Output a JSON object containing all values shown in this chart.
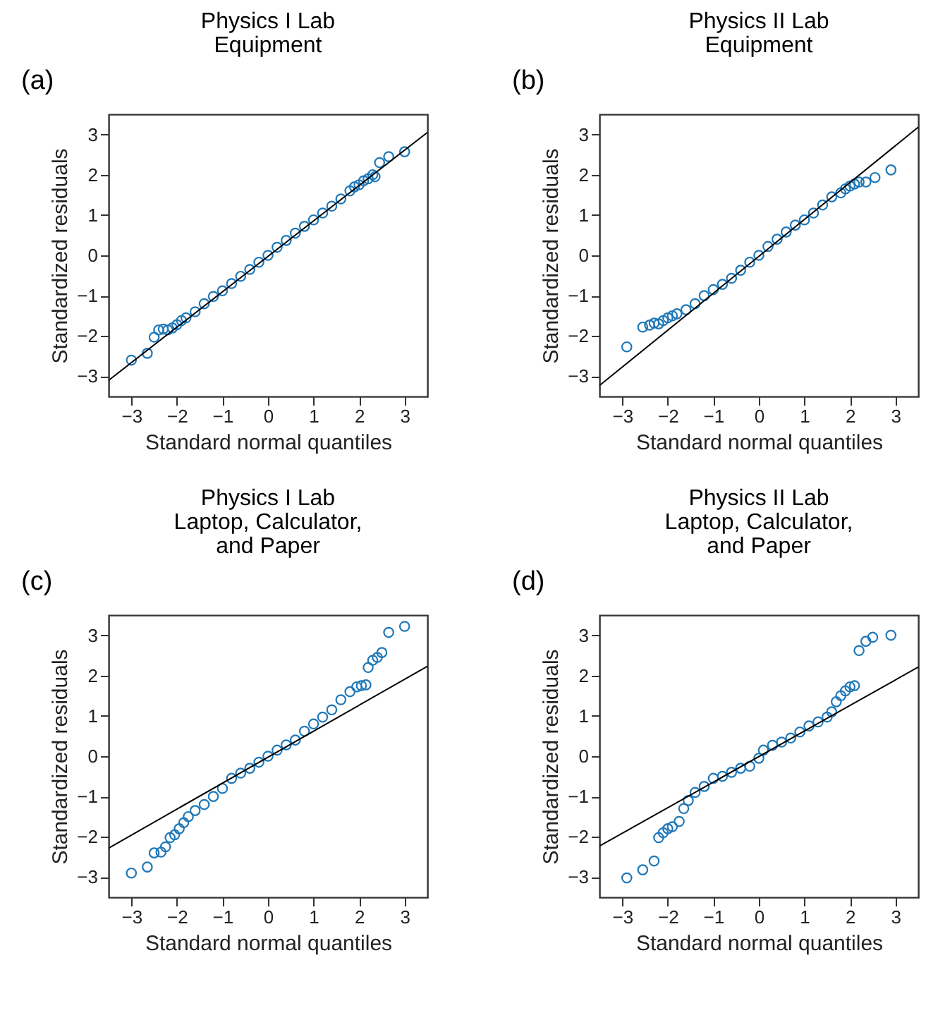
{
  "chart_data": [
    {
      "type": "scatter",
      "title": "Physics I Lab\nEquipment",
      "xlabel": "Standard normal quantiles",
      "ylabel": "Standardized residuals",
      "annotations": [
        "(a)"
      ],
      "xlim": [
        -3.5,
        3.5
      ],
      "ylim": [
        -3.5,
        3.5
      ],
      "xticks": [
        -3,
        -2,
        -1,
        0,
        1,
        2,
        3
      ],
      "yticks": [
        -3,
        -2,
        -1,
        0,
        1,
        2,
        3
      ],
      "grid": false,
      "series": [
        {
          "color": "#1f78b8",
          "marker": "circle",
          "x": [
            -3.0,
            -2.65,
            -2.5,
            -2.4,
            -2.3,
            -2.2,
            -2.1,
            -2.0,
            -1.9,
            -1.8,
            -1.6,
            -1.4,
            -1.2,
            -1.0,
            -0.8,
            -0.6,
            -0.4,
            -0.2,
            0,
            0.2,
            0.4,
            0.6,
            0.8,
            1.0,
            1.2,
            1.4,
            1.6,
            1.8,
            1.9,
            2.0,
            2.1,
            2.2,
            2.3,
            2.35,
            2.45,
            2.65,
            3.0
          ],
          "values": [
            -2.6,
            -2.43,
            -2.03,
            -1.85,
            -1.83,
            -1.85,
            -1.8,
            -1.72,
            -1.62,
            -1.55,
            -1.4,
            -1.2,
            -1.02,
            -0.88,
            -0.7,
            -0.52,
            -0.35,
            -0.17,
            0,
            0.2,
            0.37,
            0.55,
            0.72,
            0.88,
            1.05,
            1.22,
            1.4,
            1.6,
            1.7,
            1.75,
            1.85,
            1.9,
            2.0,
            1.95,
            2.3,
            2.45,
            2.57
          ]
        },
        {
          "type": "line",
          "color": "#000000",
          "marker": "none",
          "line_style": "solid",
          "x": [
            -3.5,
            3.5
          ],
          "values": [
            -3.1,
            3.05
          ]
        }
      ]
    },
    {
      "type": "scatter",
      "title": "Physics II Lab\nEquipment",
      "xlabel": "Standard normal quantiles",
      "ylabel": "Standardized residuals",
      "annotations": [
        "(b)"
      ],
      "xlim": [
        -3.5,
        3.5
      ],
      "ylim": [
        -3.5,
        3.5
      ],
      "xticks": [
        -3,
        -2,
        -1,
        0,
        1,
        2,
        3
      ],
      "yticks": [
        -3,
        -2,
        -1,
        0,
        1,
        2,
        3
      ],
      "grid": false,
      "series": [
        {
          "color": "#1f78b8",
          "marker": "circle",
          "x": [
            -2.9,
            -2.55,
            -2.4,
            -2.3,
            -2.2,
            -2.1,
            -2.0,
            -1.9,
            -1.8,
            -1.6,
            -1.4,
            -1.2,
            -1.0,
            -0.8,
            -0.6,
            -0.4,
            -0.2,
            0,
            0.2,
            0.4,
            0.6,
            0.8,
            1.0,
            1.2,
            1.4,
            1.6,
            1.8,
            1.9,
            2.0,
            2.1,
            2.2,
            2.35,
            2.55,
            2.9
          ],
          "values": [
            -2.27,
            -1.78,
            -1.73,
            -1.68,
            -1.7,
            -1.62,
            -1.55,
            -1.5,
            -1.45,
            -1.35,
            -1.2,
            -1.0,
            -0.85,
            -0.72,
            -0.57,
            -0.37,
            -0.17,
            0,
            0.22,
            0.4,
            0.58,
            0.75,
            0.88,
            1.05,
            1.25,
            1.45,
            1.55,
            1.65,
            1.72,
            1.77,
            1.82,
            1.82,
            1.93,
            2.12
          ]
        },
        {
          "type": "line",
          "color": "#000000",
          "marker": "none",
          "line_style": "solid",
          "x": [
            -3.5,
            3.5
          ],
          "values": [
            -3.23,
            3.18
          ]
        }
      ]
    },
    {
      "type": "scatter",
      "title": "Physics I Lab\nLaptop, Calculator,\nand Paper",
      "xlabel": "Standard normal quantiles",
      "ylabel": "Standardized residuals",
      "annotations": [
        "(c)"
      ],
      "xlim": [
        -3.5,
        3.5
      ],
      "ylim": [
        -3.5,
        3.5
      ],
      "xticks": [
        -3,
        -2,
        -1,
        0,
        1,
        2,
        3
      ],
      "yticks": [
        -3,
        -2,
        -1,
        0,
        1,
        2,
        3
      ],
      "grid": false,
      "series": [
        {
          "color": "#1f78b8",
          "marker": "circle",
          "x": [
            -3.0,
            -2.65,
            -2.5,
            -2.35,
            -2.25,
            -2.15,
            -2.05,
            -1.95,
            -1.85,
            -1.75,
            -1.6,
            -1.4,
            -1.2,
            -1.0,
            -0.8,
            -0.6,
            -0.4,
            -0.2,
            0,
            0.2,
            0.4,
            0.6,
            0.8,
            1.0,
            1.2,
            1.4,
            1.6,
            1.8,
            1.95,
            2.05,
            2.15,
            2.2,
            2.3,
            2.4,
            2.5,
            2.65,
            3.0
          ],
          "values": [
            -2.9,
            -2.75,
            -2.4,
            -2.38,
            -2.25,
            -2.02,
            -1.95,
            -1.8,
            -1.65,
            -1.5,
            -1.35,
            -1.2,
            -1.0,
            -0.8,
            -0.55,
            -0.42,
            -0.3,
            -0.15,
            0,
            0.15,
            0.28,
            0.4,
            0.62,
            0.8,
            0.97,
            1.15,
            1.4,
            1.6,
            1.72,
            1.75,
            1.77,
            2.2,
            2.38,
            2.45,
            2.57,
            3.07,
            3.22
          ]
        },
        {
          "type": "line",
          "color": "#000000",
          "marker": "none",
          "line_style": "solid",
          "x": [
            -3.5,
            3.5
          ],
          "values": [
            -2.28,
            2.23
          ]
        }
      ]
    },
    {
      "type": "scatter",
      "title": "Physics II Lab\nLaptop, Calculator,\nand Paper",
      "xlabel": "Standard normal quantiles",
      "ylabel": "Standardized residuals",
      "annotations": [
        "(d)"
      ],
      "xlim": [
        -3.5,
        3.5
      ],
      "ylim": [
        -3.5,
        3.5
      ],
      "xticks": [
        -3,
        -2,
        -1,
        0,
        1,
        2,
        3
      ],
      "yticks": [
        -3,
        -2,
        -1,
        0,
        1,
        2,
        3
      ],
      "grid": false,
      "series": [
        {
          "color": "#1f78b8",
          "marker": "circle",
          "x": [
            -2.9,
            -2.55,
            -2.3,
            -2.2,
            -2.1,
            -2.0,
            -1.9,
            -1.75,
            -1.65,
            -1.55,
            -1.4,
            -1.2,
            -1.0,
            -0.8,
            -0.6,
            -0.4,
            -0.2,
            0,
            0.1,
            0.3,
            0.5,
            0.7,
            0.9,
            1.1,
            1.3,
            1.5,
            1.6,
            1.7,
            1.8,
            1.9,
            2.0,
            2.1,
            2.2,
            2.35,
            2.5,
            2.9
          ],
          "values": [
            -3.02,
            -2.82,
            -2.6,
            -2.02,
            -1.9,
            -1.8,
            -1.75,
            -1.62,
            -1.3,
            -1.1,
            -0.9,
            -0.75,
            -0.55,
            -0.5,
            -0.4,
            -0.3,
            -0.25,
            -0.05,
            0.15,
            0.27,
            0.35,
            0.45,
            0.6,
            0.75,
            0.85,
            0.97,
            1.1,
            1.35,
            1.5,
            1.62,
            1.72,
            1.75,
            2.62,
            2.85,
            2.95,
            3.0
          ]
        },
        {
          "type": "line",
          "color": "#000000",
          "marker": "none",
          "line_style": "solid",
          "x": [
            -3.5,
            3.5
          ],
          "values": [
            -2.23,
            2.21
          ]
        }
      ]
    }
  ]
}
